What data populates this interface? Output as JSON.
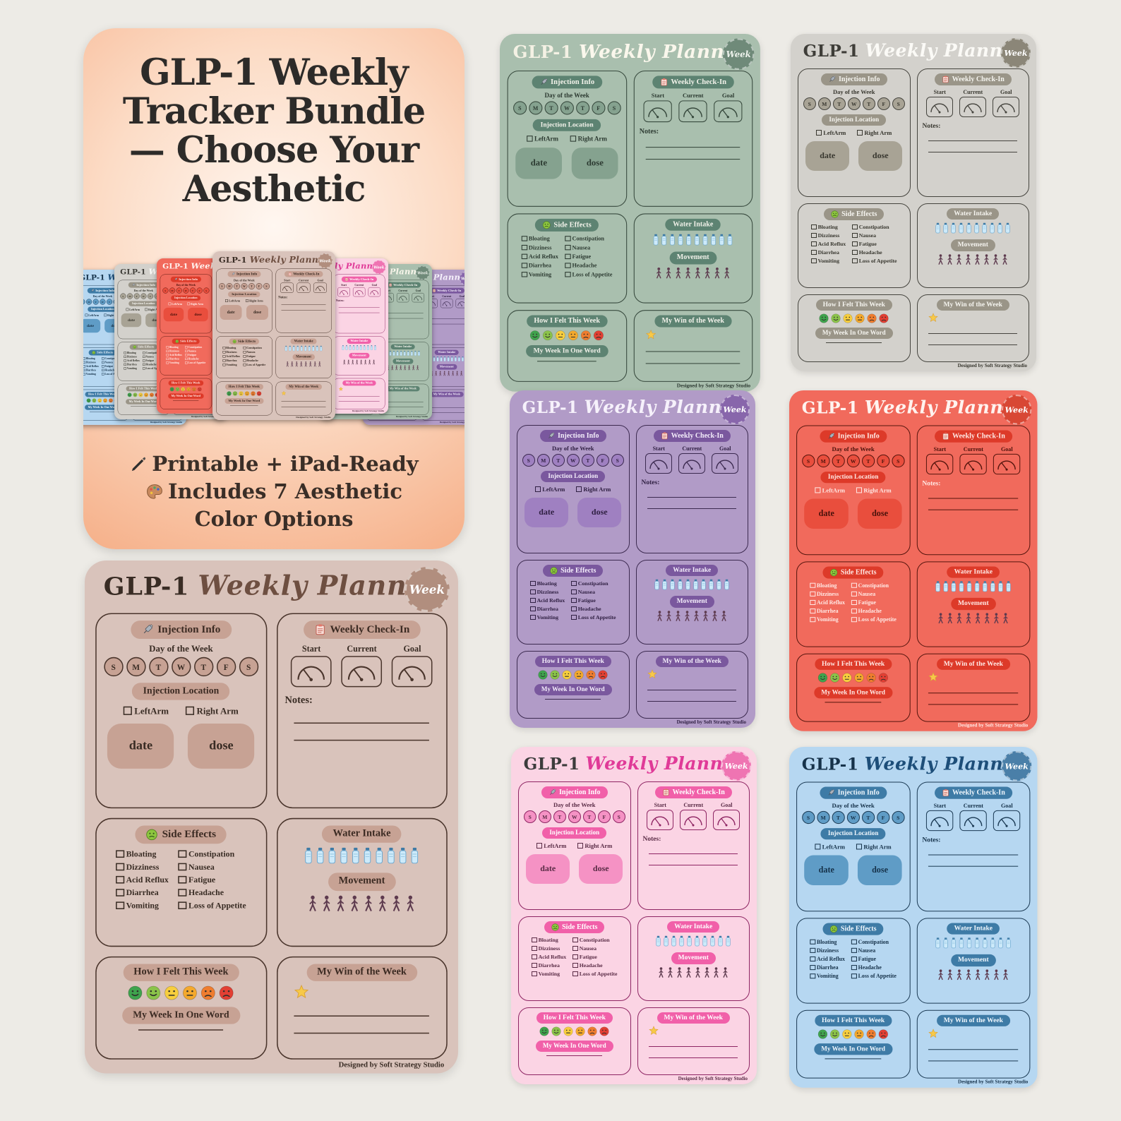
{
  "hero": {
    "title": "GLP-1 Weekly Tracker Bundle — Choose Your Aesthetic",
    "feature_printable": "Printable + iPad-Ready",
    "feature_colors": "Includes 7 Aesthetic Color Options"
  },
  "labels": {
    "title_glp1": "GLP-1",
    "title_script": "Weekly Planner",
    "badge": "Week",
    "injection": {
      "title": "Injection Info",
      "day_of_week": "Day of the Week",
      "days": [
        "S",
        "M",
        "T",
        "W",
        "T",
        "F",
        "S"
      ],
      "location": "Injection Location",
      "left_arm": "LeftArm",
      "right_arm": "Right Arm",
      "date": "date",
      "dose": "dose"
    },
    "checkin": {
      "title": "Weekly Check-In",
      "columns": [
        "Start",
        "Current",
        "Goal"
      ],
      "notes": "Notes:"
    },
    "side_effects": {
      "title": "Side Effects",
      "col1": [
        "Bloating",
        "Dizziness",
        "Acid Reflux",
        "Diarrhea",
        "Vomiting"
      ],
      "col2": [
        "Constipation",
        "Nausea",
        "Fatigue",
        "Headache",
        "Loss of Appetite"
      ]
    },
    "water_title": "Water Intake",
    "movement_title": "Movement",
    "felt_title": "How I Felt This Week",
    "one_word": "My Week In One Word",
    "win_title": "My Win of the Week",
    "credit": "Designed by Soft Strategy Studio"
  },
  "variants": [
    {
      "name": "tan",
      "bg": "#d9c3bb",
      "ink": "#4a352c",
      "pill": "#c7a294",
      "pill_text": "#3c2b23",
      "box": "#c7a294",
      "title_glp1": "#392c24",
      "title_script": "#6e4f41",
      "badge": "#b18e7e",
      "badge_text": "#ffffff",
      "text": "#392c24",
      "list_text": "#392c24"
    },
    {
      "name": "sage",
      "bg": "#a9bfae",
      "ink": "#384a3e",
      "pill": "#5d8372",
      "pill_text": "#f2f2ea",
      "box": "#85a28f",
      "title_glp1": "#f4f1e4",
      "title_script": "#faf7ec",
      "badge": "#6f8a79",
      "badge_text": "#eef2ec",
      "text": "#2c3a31",
      "list_text": "#2c3a31"
    },
    {
      "name": "gray",
      "bg": "#d3d1cc",
      "ink": "#45443e",
      "pill": "#9a9588",
      "pill_text": "#f5f4ef",
      "box": "#a8a395",
      "title_glp1": "#3e3d38",
      "title_script": "#fbfaf6",
      "badge": "#8b8678",
      "badge_text": "#ffffff",
      "text": "#38372f",
      "list_text": "#38372f"
    },
    {
      "name": "purple",
      "bg": "#b19bc7",
      "ink": "#3c2a50",
      "pill": "#7a589e",
      "pill_text": "#f4eefb",
      "box": "#9f80c1",
      "title_glp1": "#f6f1fb",
      "title_script": "#f6f1fb",
      "badge": "#8866ab",
      "badge_text": "#ffffff",
      "text": "#302043",
      "list_text": "#302043"
    },
    {
      "name": "coral",
      "bg": "#f16a5c",
      "ink": "#55150d",
      "pill": "#dd3a29",
      "pill_text": "#ffe9e5",
      "box": "#e94e3d",
      "title_glp1": "#fff3ef",
      "title_script": "#fff3ef",
      "badge": "#d84734",
      "badge_text": "#ffffff",
      "text": "#4a120b",
      "list_text": "#ffe9e5"
    },
    {
      "name": "pink",
      "bg": "#fbd4e4",
      "ink": "#8e2563",
      "pill": "#f160a9",
      "pill_text": "#ffffff",
      "box": "#f592c4",
      "title_glp1": "#3c3c3c",
      "title_script": "#e03a98",
      "badge": "#ef74b2",
      "badge_text": "#ffffff",
      "text": "#5a2c46",
      "list_text": "#5a2c46"
    },
    {
      "name": "blue",
      "bg": "#b6d7f1",
      "ink": "#1b3a54",
      "pill": "#3e7ba6",
      "pill_text": "#f0f7fd",
      "box": "#5f9cc6",
      "title_glp1": "#16324a",
      "title_script": "#1d4e79",
      "badge": "#4a7fa8",
      "badge_text": "#ffffff",
      "text": "#16324a",
      "list_text": "#16324a"
    }
  ]
}
